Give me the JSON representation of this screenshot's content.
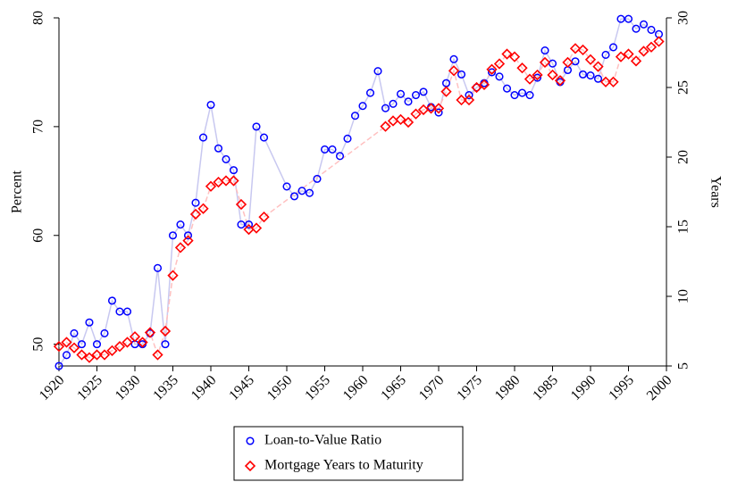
{
  "chart_data": {
    "type": "line",
    "ylabel": "Percent",
    "y2label": "Years",
    "xlim": [
      1920,
      2000
    ],
    "xticks": [
      1920,
      1925,
      1930,
      1935,
      1940,
      1945,
      1950,
      1955,
      1960,
      1965,
      1970,
      1975,
      1980,
      1985,
      1990,
      1995,
      2000
    ],
    "ylim": [
      48,
      80
    ],
    "yticks": [
      50,
      60,
      70,
      80
    ],
    "y2lim": [
      5,
      30
    ],
    "y2ticks": [
      5,
      10,
      15,
      20,
      25,
      30
    ],
    "series": [
      {
        "name": "Loan-to-Value Ratio",
        "color": "#0000ff",
        "line_color": "#c8c8f0",
        "marker": "circle",
        "x": [
          1920,
          1921,
          1922,
          1923,
          1924,
          1925,
          1926,
          1927,
          1928,
          1929,
          1930,
          1931,
          1932,
          1933,
          1934,
          1935,
          1936,
          1937,
          1938,
          1939,
          1940,
          1941,
          1942,
          1943,
          1944,
          1945,
          1946,
          1947,
          1950,
          1951,
          1952,
          1953,
          1954,
          1955,
          1956,
          1957,
          1958,
          1959,
          1960,
          1961,
          1962,
          1963,
          1964,
          1965,
          1966,
          1967,
          1968,
          1969,
          1970,
          1971,
          1972,
          1973,
          1974,
          1975,
          1976,
          1977,
          1978,
          1979,
          1980,
          1981,
          1982,
          1983,
          1984,
          1985,
          1986,
          1987,
          1988,
          1989,
          1990,
          1991,
          1992,
          1993,
          1994,
          1995,
          1996,
          1997,
          1998,
          1999
        ],
        "values": [
          48,
          49,
          51,
          50,
          52,
          50,
          51,
          54,
          53,
          53,
          50,
          50,
          51,
          57,
          50,
          60,
          61,
          60,
          63,
          69,
          72,
          68,
          67,
          66,
          61,
          61,
          70,
          69,
          64.5,
          63.6,
          64.1,
          63.9,
          65.2,
          67.9,
          67.9,
          67.3,
          68.9,
          71.0,
          71.9,
          73.1,
          75.1,
          71.7,
          72.1,
          73.0,
          72.3,
          72.9,
          73.2,
          71.8,
          71.3,
          74.0,
          76.2,
          74.8,
          72.9,
          73.6,
          74.0,
          75.0,
          74.6,
          73.5,
          72.9,
          73.1,
          72.9,
          74.5,
          77.0,
          75.8,
          74.1,
          75.2,
          76.0,
          74.8,
          74.7,
          74.4,
          76.6,
          77.3,
          79.9,
          79.9,
          79.0,
          79.4,
          78.9,
          78.5
        ]
      },
      {
        "name": "Mortgage Years to Maturity",
        "color": "#ff0000",
        "line_color": "#ffc0c0",
        "marker": "diamond",
        "axis": "y2",
        "x": [
          1920,
          1921,
          1922,
          1923,
          1924,
          1925,
          1926,
          1927,
          1928,
          1929,
          1930,
          1931,
          1932,
          1933,
          1934,
          1935,
          1936,
          1937,
          1938,
          1939,
          1940,
          1941,
          1942,
          1943,
          1944,
          1945,
          1946,
          1947,
          1963,
          1964,
          1965,
          1966,
          1967,
          1968,
          1969,
          1970,
          1971,
          1972,
          1973,
          1974,
          1975,
          1976,
          1977,
          1978,
          1979,
          1980,
          1981,
          1982,
          1983,
          1984,
          1985,
          1986,
          1987,
          1988,
          1989,
          1990,
          1991,
          1992,
          1993,
          1994,
          1995,
          1996,
          1997,
          1998,
          1999
        ],
        "values": [
          6.4,
          6.7,
          6.3,
          5.8,
          5.6,
          5.8,
          5.8,
          6.1,
          6.4,
          6.7,
          7.1,
          6.7,
          7.4,
          5.8,
          7.5,
          11.5,
          13.5,
          14.0,
          15.9,
          16.3,
          17.9,
          18.2,
          18.3,
          18.3,
          16.6,
          14.8,
          14.9,
          15.7,
          22.2,
          22.6,
          22.7,
          22.5,
          23.1,
          23.4,
          23.5,
          23.5,
          24.7,
          26.2,
          24.1,
          24.1,
          25.0,
          25.2,
          26.3,
          26.7,
          27.4,
          27.2,
          26.4,
          25.6,
          25.9,
          26.8,
          25.9,
          25.5,
          26.8,
          27.8,
          27.7,
          27.0,
          26.5,
          25.4,
          25.4,
          27.2,
          27.4,
          26.9,
          27.6,
          27.9,
          28.3
        ]
      }
    ]
  }
}
